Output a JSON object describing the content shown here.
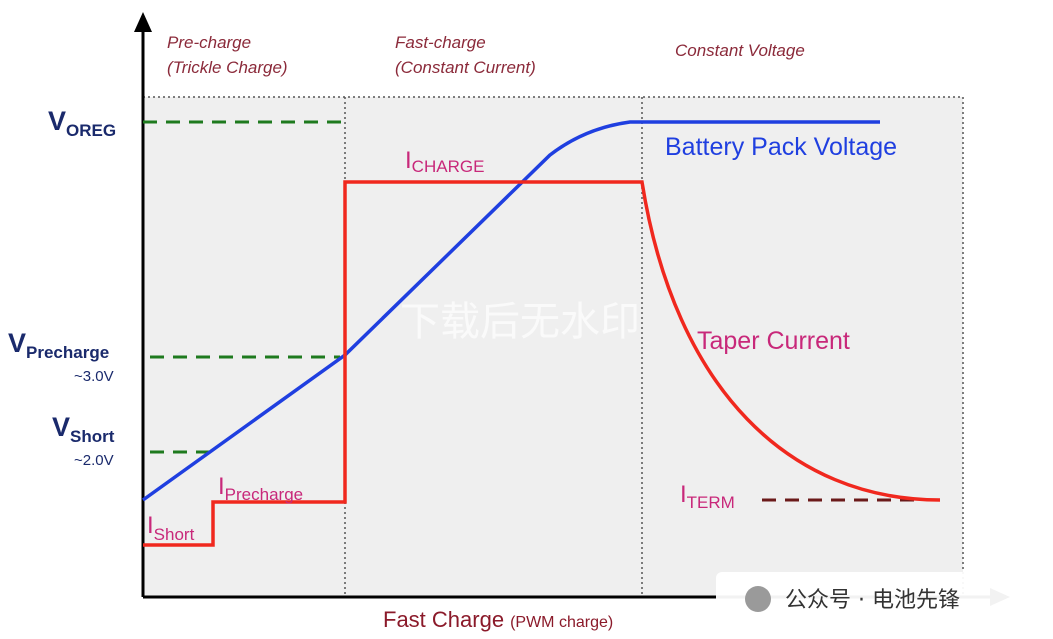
{
  "phases": [
    {
      "line1": "Pre-charge",
      "line2": "(Trickle Charge)"
    },
    {
      "line1": "Fast-charge",
      "line2": "(Constant Current)"
    },
    {
      "line1": "Constant Voltage"
    }
  ],
  "voltage_labels": [
    {
      "main": "V",
      "sub": "OREG"
    },
    {
      "main": "V",
      "sub": "Precharge",
      "note": "~3.0V"
    },
    {
      "main": "V",
      "sub": "Short",
      "note": "~2.0V"
    }
  ],
  "current_labels": [
    {
      "main": "I",
      "sub": "CHARGE"
    },
    {
      "main": "I",
      "sub": "Precharge"
    },
    {
      "main": "I",
      "sub": "Short"
    },
    {
      "main": "I",
      "sub": "TERM"
    }
  ],
  "curve_labels": {
    "voltage": "Battery Pack Voltage",
    "current": "Taper Current"
  },
  "x_label": {
    "main": "Fast Charge",
    "sub": "(PWM charge)"
  },
  "watermark": "下载后无水印",
  "badge": "公众号 · 电池先锋"
}
